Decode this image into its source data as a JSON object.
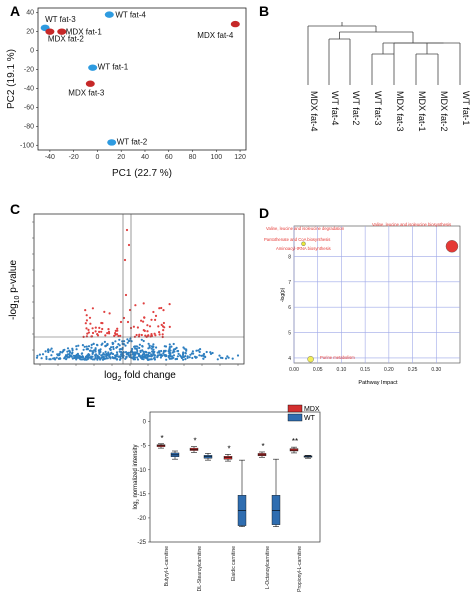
{
  "panels": {
    "a": "A",
    "b": "B",
    "c": "C",
    "d": "D",
    "e": "E"
  },
  "chart_data": [
    {
      "panel": "A",
      "type": "scatter",
      "xlabel": "PC1 (22.7 %)",
      "ylabel": "PC2 (19.1 %)",
      "xlim": [
        -50,
        125
      ],
      "ylim": [
        -105,
        45
      ],
      "xticks": [
        -40,
        -20,
        0,
        20,
        40,
        60,
        80,
        100,
        120
      ],
      "yticks": [
        40,
        20,
        0,
        -20,
        -40,
        -60,
        -80,
        -100
      ],
      "groups": {
        "MDX": "#c62828",
        "WT": "#2e9be0"
      },
      "points": [
        {
          "label": "WT fat-4",
          "group": "WT",
          "x": 10,
          "y": 38
        },
        {
          "label": "WT fat-3",
          "group": "WT",
          "x": -44,
          "y": 24
        },
        {
          "label": "MDX fat-1",
          "group": "MDX",
          "x": -30,
          "y": 20
        },
        {
          "label": "MDX fat-2",
          "group": "MDX",
          "x": -40,
          "y": 20
        },
        {
          "label": "MDX fat-4",
          "group": "MDX",
          "x": 116,
          "y": 28
        },
        {
          "label": "WT fat-1",
          "group": "WT",
          "x": -4,
          "y": -18
        },
        {
          "label": "MDX fat-3",
          "group": "MDX",
          "x": -6,
          "y": -35
        },
        {
          "label": "WT fat-2",
          "group": "WT",
          "x": 12,
          "y": -97
        }
      ]
    },
    {
      "panel": "B",
      "type": "dendrogram",
      "leaves": [
        "MDX fat-4",
        "WT fat-4",
        "WT fat-2",
        "WT fat-3",
        "MDX fat-3",
        "MDX fat-1",
        "MDX fat-2",
        "WT fat-1"
      ]
    },
    {
      "panel": "C",
      "type": "scatter",
      "subtype": "volcano",
      "xlabel_main": "log",
      "xlabel_sub": "2",
      "xlabel_rest": " fold change",
      "ylabel_pre": "-log",
      "ylabel_sub": "10",
      "ylabel_post": " p-value",
      "colors": {
        "significant": "#e04040",
        "not_significant": "#2e7fc0"
      }
    },
    {
      "panel": "D",
      "type": "scatter",
      "subtype": "bubble",
      "xlabel": "Pathway Impact",
      "ylabel": "-log(p)",
      "xlim": [
        0,
        0.35
      ],
      "ylim": [
        3.8,
        9.2
      ],
      "xticks": [
        "0.00",
        "0.05",
        "0.10",
        "0.15",
        "0.20",
        "0.25",
        "0.30"
      ],
      "yticks": [
        "4",
        "5",
        "6",
        "7",
        "8"
      ],
      "points": [
        {
          "label": "Valine, leucine and isoleucine biosynthesis",
          "x": 0.333,
          "y": 8.4,
          "color": "#e53935",
          "size": 6
        },
        {
          "label": "Valine, leucine and isoleucine degradation",
          "x": 0.02,
          "y": 8.5,
          "color": "#e8e83a",
          "size": 2
        },
        {
          "label": "Pantothenate and CoA biosynthesis",
          "x": 0.0,
          "y": 8.3,
          "color": "#e8e83a",
          "size": 0
        },
        {
          "label": "Aminoacyl-tRNA biosynthesis",
          "x": 0.015,
          "y": 8.05,
          "color": "#e8e83a",
          "size": 0
        },
        {
          "label": "Purine metabolism",
          "x": 0.035,
          "y": 3.95,
          "color": "#f2ee5a",
          "size": 3
        }
      ]
    },
    {
      "panel": "E",
      "type": "box",
      "ylabel_pre": "log",
      "ylabel_sub": "2",
      "ylabel_post": " normalized intensity",
      "ylim": [
        -25,
        2
      ],
      "yticks": [
        0,
        -5,
        -10,
        -15,
        -20,
        -25
      ],
      "categories": [
        "Butyryl-L-carnitine",
        "DL-Stearoylcarnitine",
        "Elaidic carnitine",
        "L-Octanoylcarnitine",
        "Propionyl-L-carnitine"
      ],
      "series": [
        {
          "name": "MDX",
          "color": "#d32f2f",
          "boxes": [
            [
              -5.5,
              -5.2,
              -5.0,
              -4.8,
              -4.6
            ],
            [
              -6.4,
              -6.0,
              -5.8,
              -5.5,
              -5.2
            ],
            [
              -8.2,
              -7.8,
              -7.5,
              -7.2,
              -6.8
            ],
            [
              -7.4,
              -7.1,
              -6.9,
              -6.6,
              -6.3
            ],
            [
              -6.5,
              -6.1,
              -5.9,
              -5.6,
              -5.3
            ]
          ]
        },
        {
          "name": "WT",
          "color": "#2f6db0",
          "boxes": [
            [
              -7.8,
              -7.3,
              -6.9,
              -6.5,
              -6.1
            ],
            [
              -8.0,
              -7.6,
              -7.3,
              -7.0,
              -6.6
            ],
            [
              -21.8,
              -21.6,
              -18.5,
              -15.3,
              -8.0
            ],
            [
              -21.8,
              -21.4,
              -18.5,
              -15.3,
              -7.8
            ],
            [
              -7.6,
              -7.4,
              -7.2,
              -7.1,
              -7.0
            ]
          ]
        }
      ],
      "significance": [
        "*",
        "*",
        "*",
        "*",
        "**"
      ]
    }
  ]
}
